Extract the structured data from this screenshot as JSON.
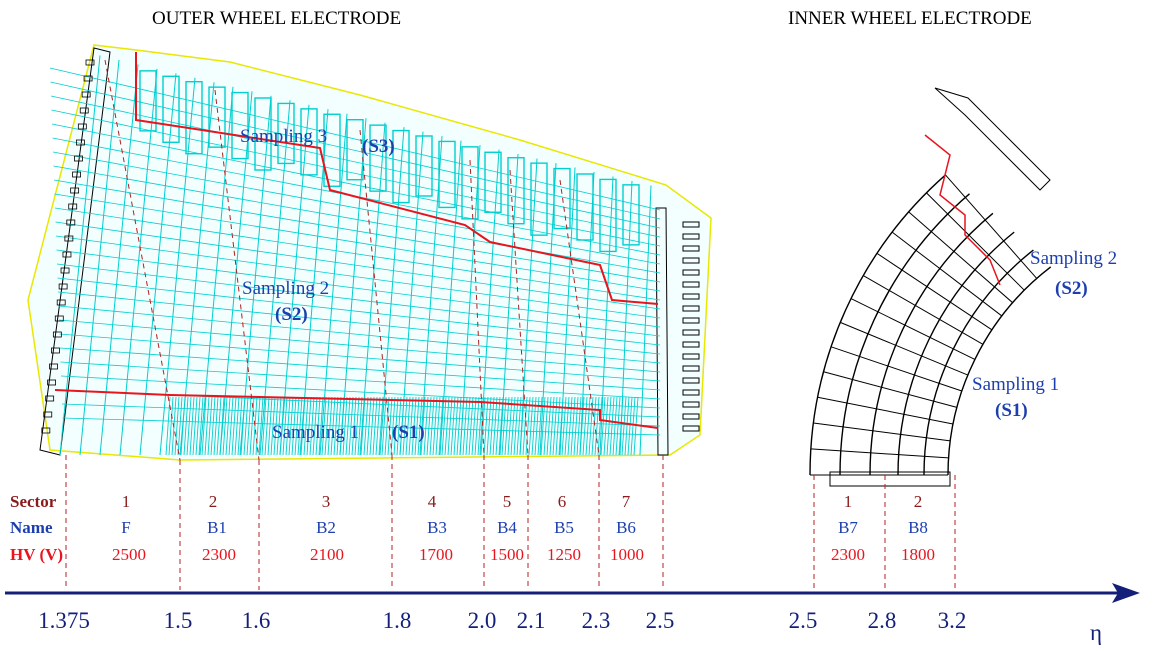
{
  "titles": {
    "outer": "OUTER WHEEL ELECTRODE",
    "inner": "INNER WHEEL ELECTRODE"
  },
  "outer_samplings": {
    "s3_label": "Sampling 3",
    "s3_code": "(S3)",
    "s2_label": "Sampling 2",
    "s2_code": "(S2)",
    "s1_label": "Sampling 1",
    "s1_code": "(S1)"
  },
  "inner_samplings": {
    "s2_label": "Sampling 2",
    "s2_code": "(S2)",
    "s1_label": "Sampling 1",
    "s1_code": "(S1)"
  },
  "table": {
    "row_labels": {
      "sector": "Sector",
      "name": "Name",
      "hv": "HV (V)"
    },
    "outer": {
      "sectors": [
        "1",
        "2",
        "3",
        "4",
        "5",
        "6",
        "7"
      ],
      "names": [
        "F",
        "B1",
        "B2",
        "B3",
        "B4",
        "B5",
        "B6"
      ],
      "hv": [
        "2500",
        "2300",
        "2100",
        "1700",
        "1500",
        "1250",
        "1000"
      ]
    },
    "inner": {
      "sectors": [
        "1",
        "2"
      ],
      "names": [
        "B7",
        "B8"
      ],
      "hv": [
        "2300",
        "1800"
      ]
    }
  },
  "eta_axis": {
    "symbol": "η",
    "outer_boundaries": [
      "1.375",
      "1.5",
      "1.6",
      "1.8",
      "2.0",
      "2.1",
      "2.3",
      "2.5"
    ],
    "inner_boundaries": [
      "2.5",
      "2.8",
      "3.2"
    ]
  },
  "colors": {
    "sector_text": "#8b1a1a",
    "name_text": "#1c3fb0",
    "hv_text": "#e8141e",
    "axis": "#141f7a",
    "cells": "#00cfd0",
    "outline": "#e8e800",
    "sampling_boundary": "#e8141e",
    "sampling_text": "#1c3fb0"
  }
}
